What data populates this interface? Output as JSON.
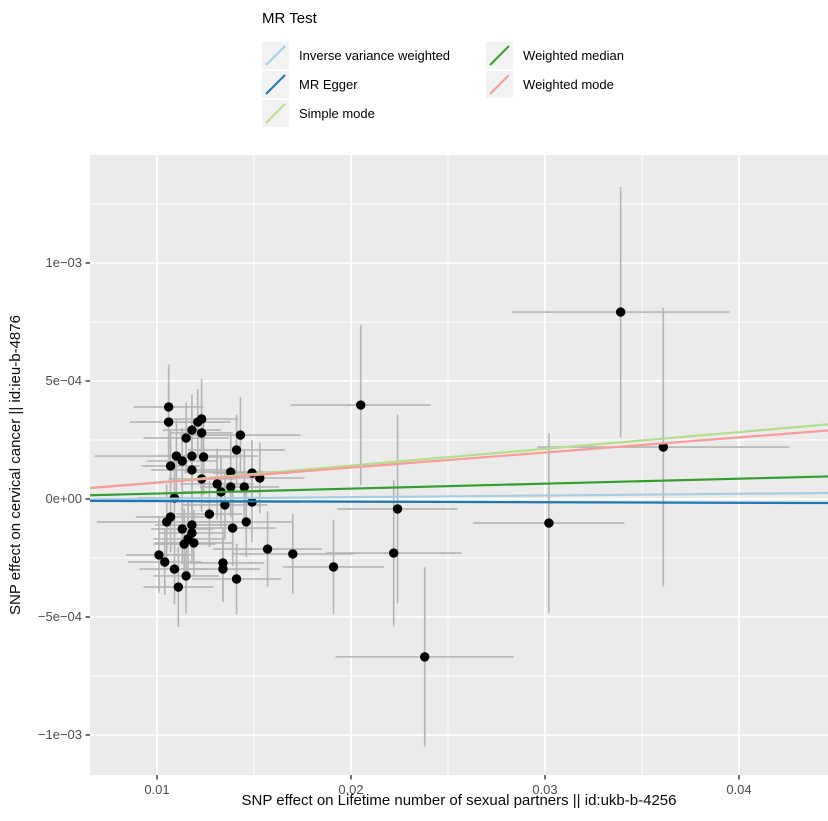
{
  "legend": {
    "title": "MR Test",
    "key_fill": "#F2F2F2",
    "columns": [
      [
        {
          "label": "Inverse variance weighted",
          "color": "#A6CEE3"
        },
        {
          "label": "MR Egger",
          "color": "#1F78B4"
        },
        {
          "label": "Simple mode",
          "color": "#B2DF8A"
        }
      ],
      [
        {
          "label": "Weighted median",
          "color": "#33A02C"
        },
        {
          "label": "Weighted mode",
          "color": "#FB9A99"
        }
      ]
    ]
  },
  "chart_data": {
    "type": "scatter",
    "title": "",
    "xlabel": "SNP effect on Lifetime number of sexual partners || id:ukb-b-4256",
    "ylabel": "SNP effect on cervical cancer || id:ieu-b-4876",
    "legend_title": "MR Test",
    "legend_position": "top",
    "grid": true,
    "panel_fill": "#EBEBEB",
    "grid_color": "#FFFFFF",
    "point_color": "#000000",
    "errorbar_color": "#B4B4B4",
    "tick_color": "#333333",
    "tick_label_color": "#4D4D4D",
    "xlim": [
      0.006546,
      0.044588
    ],
    "ylim": [
      -0.0011695,
      0.0014576
    ],
    "x_ticks": [
      {
        "value": 0.01,
        "label": "0.01"
      },
      {
        "value": 0.02,
        "label": "0.02"
      },
      {
        "value": 0.03,
        "label": "0.03"
      },
      {
        "value": 0.04,
        "label": "0.04"
      }
    ],
    "y_ticks": [
      {
        "value": 0.001,
        "label": "1e−03"
      },
      {
        "value": 0.0005,
        "label": "5e−04"
      },
      {
        "value": 0.0,
        "label": "0e+00"
      },
      {
        "value": -0.0005,
        "label": "−5e−04"
      },
      {
        "value": -0.001,
        "label": "−1e−03"
      }
    ],
    "x_minor": [
      0.015,
      0.025,
      0.035
    ],
    "y_minor": [
      0.00125,
      0.00075,
      0.00025,
      -0.00025,
      -0.00075
    ],
    "points_format": [
      "x",
      "y",
      "xerr",
      "yerr"
    ],
    "points": [
      [
        0.0106,
        0.00039,
        0.0018,
        0.00018
      ],
      [
        0.0106,
        0.000326,
        0.002,
        0.00016
      ],
      [
        0.0118,
        0.000292,
        0.0015,
        0.00015
      ],
      [
        0.0121,
        0.000326,
        0.0017,
        0.00014
      ],
      [
        0.0123,
        0.000339,
        0.0019,
        0.00017
      ],
      [
        0.0115,
        0.000258,
        0.0022,
        0.00015
      ],
      [
        0.0123,
        0.00028,
        0.0016,
        0.00013
      ],
      [
        0.0143,
        0.000271,
        0.0031,
        0.00016
      ],
      [
        0.0141,
        0.000208,
        0.0025,
        0.00015
      ],
      [
        0.011,
        0.000182,
        0.0042,
        0.00016
      ],
      [
        0.0113,
        0.000161,
        0.0018,
        0.00014
      ],
      [
        0.0107,
        0.00014,
        0.0015,
        0.00015
      ],
      [
        0.0118,
        0.000182,
        0.0018,
        0.00013
      ],
      [
        0.0124,
        0.000178,
        0.0016,
        0.00016
      ],
      [
        0.0118,
        0.000123,
        0.0021,
        0.00015
      ],
      [
        0.0123,
        8.5e-05,
        0.0017,
        0.00014
      ],
      [
        0.0138,
        0.000114,
        0.0024,
        0.00016
      ],
      [
        0.0131,
        6.4e-05,
        0.0019,
        0.00015
      ],
      [
        0.0149,
        0.00011,
        0.002,
        0.00014
      ],
      [
        0.0153,
        8.9e-05,
        0.0023,
        0.00015
      ],
      [
        0.0145,
        5.1e-05,
        0.0018,
        0.00016
      ],
      [
        0.0138,
        5.1e-05,
        0.0016,
        0.00013
      ],
      [
        0.0133,
        3e-05,
        0.002,
        0.00015
      ],
      [
        0.0109,
        4e-06,
        0.0019,
        0.00016
      ],
      [
        0.0135,
        -2.5e-05,
        0.0022,
        0.00015
      ],
      [
        0.0149,
        -1.3e-05,
        0.0025,
        0.00017
      ],
      [
        0.0127,
        -6.4e-05,
        0.0017,
        0.00014
      ],
      [
        0.0107,
        -7.6e-05,
        0.0018,
        0.00015
      ],
      [
        0.0105,
        -9.7e-05,
        0.0036,
        0.00016
      ],
      [
        0.0118,
        -0.00011,
        0.0019,
        0.00014
      ],
      [
        0.0113,
        -0.000127,
        0.0016,
        0.00015
      ],
      [
        0.0139,
        -0.000123,
        0.0022,
        0.00016
      ],
      [
        0.0146,
        -9.7e-05,
        0.0024,
        0.00015
      ],
      [
        0.0118,
        -0.000144,
        0.0017,
        0.00013
      ],
      [
        0.0116,
        -0.000169,
        0.0018,
        0.00016
      ],
      [
        0.0119,
        -0.000186,
        0.002,
        0.00014
      ],
      [
        0.0114,
        -0.000191,
        0.0016,
        0.00015
      ],
      [
        0.0101,
        -0.000237,
        0.0017,
        0.00016
      ],
      [
        0.0104,
        -0.000267,
        0.0019,
        0.00014
      ],
      [
        0.0157,
        -0.000212,
        0.0028,
        0.00016
      ],
      [
        0.017,
        -0.000233,
        0.0031,
        0.00017
      ],
      [
        0.0109,
        -0.000297,
        0.0018,
        0.00015
      ],
      [
        0.0134,
        -0.000271,
        0.0021,
        0.00015
      ],
      [
        0.0134,
        -0.000297,
        0.0019,
        0.00014
      ],
      [
        0.0115,
        -0.000326,
        0.0017,
        0.00016
      ],
      [
        0.0141,
        -0.000339,
        0.0023,
        0.00015
      ],
      [
        0.0111,
        -0.000373,
        0.0018,
        0.00017
      ],
      [
        0.0191,
        -0.000288,
        0.0026,
        0.0002
      ],
      [
        0.0222,
        -0.000229,
        0.0035,
        0.00031
      ],
      [
        0.0238,
        -0.000669,
        0.0046,
        0.00038
      ],
      [
        0.0205,
        0.000398,
        0.0036,
        0.00034
      ],
      [
        0.0224,
        -4.2e-05,
        0.0031,
        0.0004
      ],
      [
        0.0302,
        -0.000102,
        0.0039,
        0.00038
      ],
      [
        0.0339,
        0.000792,
        0.0056,
        0.00053
      ],
      [
        0.0361,
        0.00022,
        0.0065,
        0.00059
      ]
    ],
    "lines": [
      {
        "name": "Inverse variance weighted",
        "slope": 0.00072,
        "intercept": -6.7e-06,
        "color": "#A6CEE3"
      },
      {
        "name": "MR Egger",
        "slope": -0.00024,
        "intercept": -6.4e-06,
        "color": "#1F78B4"
      },
      {
        "name": "Simple mode",
        "slope": 0.0071,
        "intercept": -4e-07,
        "color": "#B2DF8A"
      },
      {
        "name": "Weighted median",
        "slope": 0.0021,
        "intercept": 2e-06,
        "color": "#33A02C"
      },
      {
        "name": "Weighted mode",
        "slope": 0.0064,
        "intercept": 5e-06,
        "color": "#FB9A99"
      }
    ]
  }
}
